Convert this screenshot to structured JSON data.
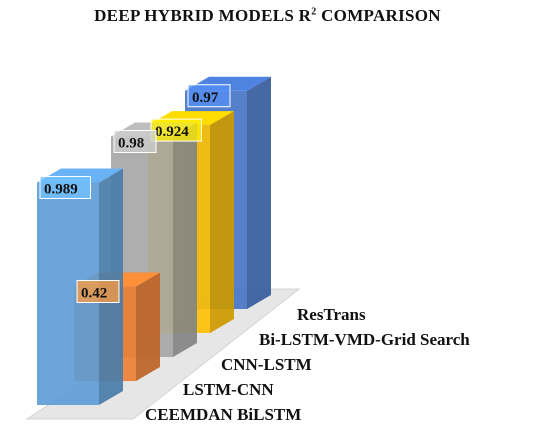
{
  "chart_data": {
    "type": "bar",
    "title": "DEEP HYBRID MODELS R",
    "title_superscript": "2",
    "title_suffix": " COMPARISON",
    "categories": [
      "CEEMDAN BiLSTM",
      "LSTM-CNN",
      "CNN-LSTM",
      "Bi-LSTM-VMD-Grid Search",
      "ResTrans"
    ],
    "values": [
      0.989,
      0.42,
      0.98,
      0.924,
      0.97
    ],
    "data_labels": [
      "0.989",
      "0.42",
      "0.98",
      "0.924",
      "0.97"
    ],
    "colors": [
      "#5b9bd5",
      "#ed7d31",
      "#a5a5a5",
      "#ffc000",
      "#4472c4"
    ],
    "ylim": [
      0,
      1
    ],
    "grid": false,
    "legend": "none",
    "xlabel": "",
    "ylabel": ""
  }
}
